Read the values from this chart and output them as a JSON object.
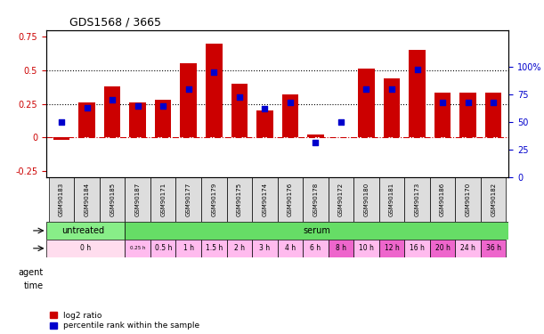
{
  "title": "GDS1568 / 3665",
  "samples": [
    "GSM90183",
    "GSM90184",
    "GSM90185",
    "GSM90187",
    "GSM90171",
    "GSM90177",
    "GSM90179",
    "GSM90175",
    "GSM90174",
    "GSM90176",
    "GSM90178",
    "GSM90172",
    "GSM90180",
    "GSM90181",
    "GSM90173",
    "GSM90186",
    "GSM90170",
    "GSM90182"
  ],
  "log2_ratio": [
    -0.02,
    0.26,
    0.38,
    0.26,
    0.28,
    0.55,
    0.7,
    0.4,
    0.2,
    0.32,
    0.02,
    0.0,
    0.51,
    0.44,
    0.65,
    0.33,
    0.33,
    0.33
  ],
  "percentile_rank": [
    50,
    63,
    70,
    65,
    65,
    80,
    95,
    73,
    62,
    68,
    32,
    50,
    80,
    80,
    98,
    68,
    68,
    68
  ],
  "bar_color": "#cc0000",
  "dot_color": "#0000cc",
  "ylim_left": [
    -0.3,
    0.8
  ],
  "ylim_right": [
    0,
    133.33
  ],
  "yticks_left": [
    -0.25,
    0,
    0.25,
    0.5,
    0.75
  ],
  "yticks_right": [
    0,
    25,
    50,
    75,
    100
  ],
  "agent_untreated_color": "#88ee88",
  "agent_serum_color": "#66dd66",
  "time_color_light": "#ffbbee",
  "time_color_dark": "#ee55cc",
  "xlabel_left": "log2 ratio",
  "xlabel_right": "percentile rank within the sample",
  "background_color": "#ffffff",
  "xticklabel_bg": "#dddddd",
  "untreated_count": 3,
  "time_blocks": [
    [
      0,
      2,
      "0 h",
      "#ffddee"
    ],
    [
      3,
      3,
      "0.25 h",
      "#ffbbee"
    ],
    [
      4,
      4,
      "0.5 h",
      "#ffbbee"
    ],
    [
      5,
      5,
      "1 h",
      "#ffbbee"
    ],
    [
      6,
      6,
      "1.5 h",
      "#ffbbee"
    ],
    [
      7,
      7,
      "2 h",
      "#ffbbee"
    ],
    [
      8,
      8,
      "3 h",
      "#ffbbee"
    ],
    [
      9,
      9,
      "4 h",
      "#ffbbee"
    ],
    [
      10,
      10,
      "6 h",
      "#ffbbee"
    ],
    [
      11,
      11,
      "8 h",
      "#ee66cc"
    ],
    [
      12,
      12,
      "10 h",
      "#ffbbee"
    ],
    [
      13,
      13,
      "12 h",
      "#ee66cc"
    ],
    [
      14,
      14,
      "16 h",
      "#ffbbee"
    ],
    [
      15,
      15,
      "20 h",
      "#ee66cc"
    ],
    [
      16,
      16,
      "24 h",
      "#ffbbee"
    ],
    [
      17,
      17,
      "36 h",
      "#ee66cc"
    ]
  ]
}
